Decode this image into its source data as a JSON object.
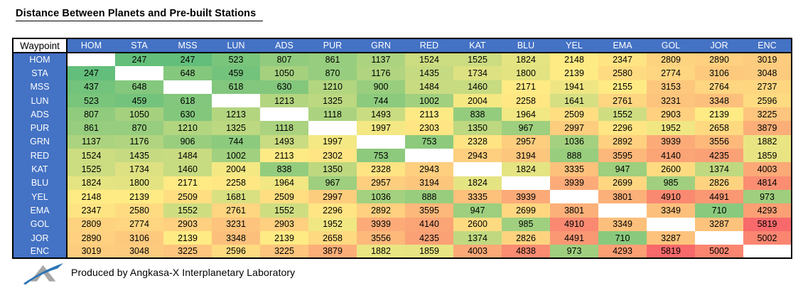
{
  "title": "Distance Between Planets and Pre-built Stations",
  "footer": {
    "credit": "Produced by Angkasa-X Interplanetary Laboratory"
  },
  "chart_data": {
    "type": "heatmap",
    "title": "Distance Between Planets and Pre-built Stations",
    "corner_label": "Waypoint",
    "columns": [
      "HOM",
      "STA",
      "MSS",
      "LUN",
      "ADS",
      "PUR",
      "GRN",
      "RED",
      "KAT",
      "BLU",
      "YEL",
      "EMA",
      "GOL",
      "JOR",
      "ENC"
    ],
    "rows": [
      "HOM",
      "STA",
      "MSS",
      "LUN",
      "ADS",
      "PUR",
      "GRN",
      "RED",
      "KAT",
      "BLU",
      "YEL",
      "EMA",
      "GOL",
      "JOR",
      "ENC"
    ],
    "matrix": [
      [
        null,
        247,
        247,
        523,
        807,
        861,
        1137,
        1524,
        1525,
        1824,
        2148,
        2347,
        2809,
        2890,
        3019
      ],
      [
        247,
        null,
        648,
        459,
        1050,
        870,
        1176,
        1435,
        1734,
        1800,
        2139,
        2580,
        2774,
        3106,
        3048
      ],
      [
        437,
        648,
        null,
        618,
        630,
        1210,
        900,
        1484,
        1460,
        2171,
        1941,
        2155,
        3153,
        2764,
        2737
      ],
      [
        523,
        459,
        618,
        null,
        1213,
        1325,
        744,
        1002,
        2004,
        2258,
        1641,
        2761,
        3231,
        3348,
        2596
      ],
      [
        807,
        1050,
        630,
        1213,
        null,
        1118,
        1493,
        2113,
        838,
        1964,
        2509,
        1552,
        2903,
        2139,
        3225
      ],
      [
        861,
        870,
        1210,
        1325,
        1118,
        null,
        1997,
        2303,
        1350,
        967,
        2997,
        2296,
        1952,
        2658,
        3879
      ],
      [
        1137,
        1176,
        906,
        744,
        1493,
        1997,
        null,
        753,
        2328,
        2957,
        1036,
        2892,
        3939,
        3556,
        1882
      ],
      [
        1524,
        1435,
        1484,
        1002,
        2113,
        2302,
        753,
        null,
        2943,
        3194,
        888,
        3595,
        4140,
        4235,
        1859
      ],
      [
        1525,
        1734,
        1460,
        2004,
        838,
        1350,
        2328,
        2943,
        null,
        1824,
        3335,
        947,
        2600,
        1374,
        4003
      ],
      [
        1824,
        1800,
        2171,
        2258,
        1964,
        967,
        2957,
        3194,
        1824,
        null,
        3939,
        2699,
        985,
        2826,
        4814
      ],
      [
        2148,
        2139,
        2509,
        1681,
        2509,
        2997,
        1036,
        888,
        3335,
        3939,
        null,
        3801,
        4910,
        4491,
        973
      ],
      [
        2347,
        2580,
        1552,
        2761,
        1552,
        2296,
        2892,
        3595,
        947,
        2699,
        3801,
        null,
        3349,
        710,
        4293
      ],
      [
        2809,
        2774,
        2903,
        3231,
        2903,
        1952,
        3939,
        4140,
        2600,
        985,
        4910,
        3349,
        null,
        3287,
        5819
      ],
      [
        2890,
        3106,
        2139,
        3348,
        2139,
        2658,
        3556,
        4235,
        1374,
        2826,
        4491,
        710,
        3287,
        null,
        5002
      ],
      [
        3019,
        3048,
        3225,
        2596,
        3225,
        3879,
        1882,
        1859,
        4003,
        4838,
        973,
        4293,
        5819,
        5002,
        null
      ]
    ],
    "color_scale": {
      "type": "3-color percentile scale",
      "min_color": "#63BE7B",
      "mid_color": "#FFEB84",
      "max_color": "#F8696B",
      "blank_color": "#FFFFFF",
      "min_value": 247,
      "max_value": 5819
    },
    "header_color": "#4472C4",
    "layout": {
      "grid": false,
      "legend": false,
      "blank_diagonal": true
    }
  }
}
